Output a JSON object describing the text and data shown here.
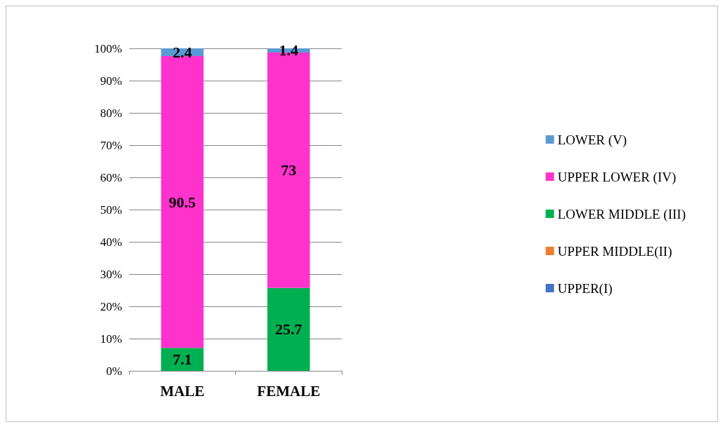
{
  "chart_data": {
    "type": "bar",
    "stacked": true,
    "categories": [
      "MALE",
      "FEMALE"
    ],
    "series": [
      {
        "name": "UPPER(I)",
        "color": "#4472c4",
        "values": [
          0,
          0
        ],
        "value_labels": [
          null,
          null
        ]
      },
      {
        "name": "UPPER MIDDLE(II)",
        "color": "#ed7d31",
        "values": [
          0,
          0
        ],
        "value_labels": [
          null,
          null
        ]
      },
      {
        "name": "LOWER MIDDLE (III)",
        "color": "#00b050",
        "values": [
          7.1,
          25.7
        ],
        "value_labels": [
          "7.1",
          "25.7"
        ]
      },
      {
        "name": "UPPER LOWER (IV)",
        "color": "#ff33cc",
        "values": [
          90.5,
          73
        ],
        "value_labels": [
          "90.5",
          "73"
        ]
      },
      {
        "name": "LOWER (V)",
        "color": "#5b9bd5",
        "values": [
          2.4,
          1.4
        ],
        "value_labels": [
          "2.4",
          "1.4"
        ]
      }
    ],
    "ylim": [
      0,
      100
    ],
    "yticks": [
      {
        "value": 0,
        "label": "0%"
      },
      {
        "value": 10,
        "label": "10%"
      },
      {
        "value": 20,
        "label": "20%"
      },
      {
        "value": 30,
        "label": "30%"
      },
      {
        "value": 40,
        "label": "40%"
      },
      {
        "value": 50,
        "label": "50%"
      },
      {
        "value": 60,
        "label": "60%"
      },
      {
        "value": 70,
        "label": "70%"
      },
      {
        "value": 80,
        "label": "80%"
      },
      {
        "value": 90,
        "label": "90%"
      },
      {
        "value": 100,
        "label": "100%"
      }
    ],
    "grid": "y",
    "legend": "right"
  }
}
